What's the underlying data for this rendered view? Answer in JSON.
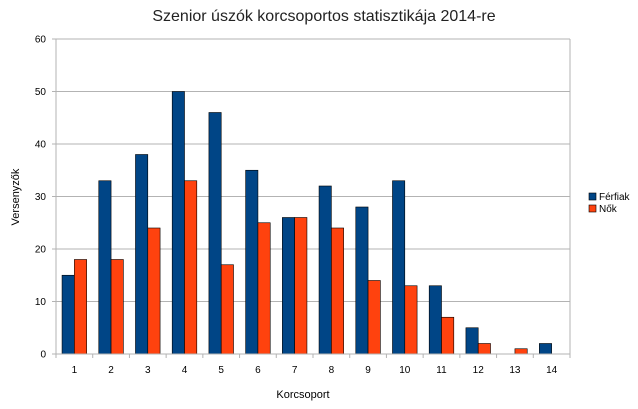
{
  "chart_data": {
    "type": "bar",
    "title": "Szenior úszók korcsoportos statisztikája 2014-re",
    "xlabel": "Korcsoport",
    "ylabel": "Versenyzők",
    "ylim": [
      0,
      60
    ],
    "yticks": [
      "0",
      "10",
      "20",
      "30",
      "40",
      "50",
      "60"
    ],
    "categories": [
      "1",
      "2",
      "3",
      "4",
      "5",
      "6",
      "7",
      "8",
      "9",
      "10",
      "11",
      "12",
      "13",
      "14"
    ],
    "grid": true,
    "legend_position": "right",
    "series": [
      {
        "name": "Férfiak",
        "color": "#004586",
        "values": [
          15,
          33,
          38,
          50,
          46,
          35,
          26,
          32,
          28,
          33,
          13,
          5,
          0,
          2
        ]
      },
      {
        "name": "Nők",
        "color": "#ff420e",
        "values": [
          18,
          18,
          24,
          33,
          17,
          25,
          26,
          24,
          14,
          13,
          7,
          2,
          1,
          0
        ]
      }
    ]
  }
}
